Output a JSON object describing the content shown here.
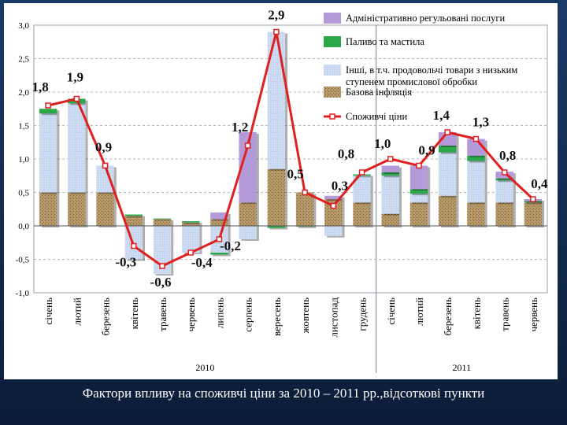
{
  "caption": "Фактори впливу на споживчі ціни за 2010 – 2011 рр.,відсоткові пункти",
  "chart_data": {
    "type": "bar",
    "stacked": true,
    "categories": [
      "січень",
      "лютий",
      "березень",
      "квітень",
      "травень",
      "червень",
      "липень",
      "серпень",
      "вересень",
      "жовтень",
      "листопад",
      "грудень",
      "січень",
      "лютий",
      "березень",
      "квітень",
      "травень",
      "червень"
    ],
    "year_groups": [
      {
        "label": "2010",
        "count": 12
      },
      {
        "label": "2011",
        "count": 6
      }
    ],
    "ylim": [
      -1.0,
      3.0
    ],
    "yticks": [
      "3,0",
      "2,5",
      "2,0",
      "1,5",
      "1,0",
      "0,5",
      "0,0",
      "-0,5",
      "-1,0"
    ],
    "ytick_values": [
      3.0,
      2.5,
      2.0,
      1.5,
      1.0,
      0.5,
      0.0,
      -0.5,
      -1.0
    ],
    "grid": true,
    "legend_position": "top-right",
    "series": [
      {
        "name": "Базова інфляція",
        "type": "bar",
        "color": "#a88a55",
        "values": [
          0.5,
          0.5,
          0.5,
          0.15,
          0.1,
          0.05,
          0.1,
          0.35,
          0.85,
          0.5,
          0.4,
          0.35,
          0.18,
          0.35,
          0.45,
          0.35,
          0.35,
          0.35
        ]
      },
      {
        "name": "Інші, в т.ч. продовольчі товари з низьким ступенем промислової обробки",
        "type": "bar",
        "color": "#c2d4ee",
        "values": [
          1.18,
          1.33,
          0.4,
          -0.5,
          -0.72,
          -0.4,
          -0.4,
          -0.2,
          2.05,
          0.0,
          -0.15,
          0.4,
          0.57,
          0.13,
          0.65,
          0.62,
          0.33,
          0.0
        ]
      },
      {
        "name": "Паливо та мастила",
        "type": "bar",
        "color": "#2aa84a",
        "values": [
          0.07,
          0.07,
          0.0,
          0.02,
          0.01,
          0.02,
          -0.03,
          0.0,
          -0.03,
          -0.01,
          0.0,
          0.02,
          0.05,
          0.07,
          0.1,
          0.08,
          0.03,
          0.02
        ]
      },
      {
        "name": "Адміністративно регульовані послуги",
        "type": "bar",
        "color": "#b49ad8",
        "values": [
          0.0,
          0.0,
          0.0,
          0.0,
          0.0,
          0.0,
          0.1,
          1.05,
          0.0,
          0.0,
          0.05,
          0.0,
          0.1,
          0.35,
          0.2,
          0.25,
          0.1,
          0.03
        ]
      },
      {
        "name": "Споживчі ціни",
        "type": "line",
        "color": "#e02020",
        "values": [
          1.8,
          1.9,
          0.9,
          -0.3,
          -0.6,
          -0.4,
          -0.2,
          1.2,
          2.9,
          0.5,
          0.3,
          0.8,
          1.0,
          0.9,
          1.4,
          1.3,
          0.8,
          0.4
        ]
      }
    ],
    "data_labels": [
      "1,8",
      "1,9",
      "0,9",
      "-0,3",
      "-0,6",
      "-0,4",
      "-0,2",
      "1,2",
      "2,9",
      "0,5",
      "0,3",
      "0,8",
      "1,0",
      "0,9",
      "1,4",
      "1,3",
      "0,8",
      "0,4"
    ],
    "legend_order": [
      3,
      2,
      1,
      0,
      4
    ]
  }
}
